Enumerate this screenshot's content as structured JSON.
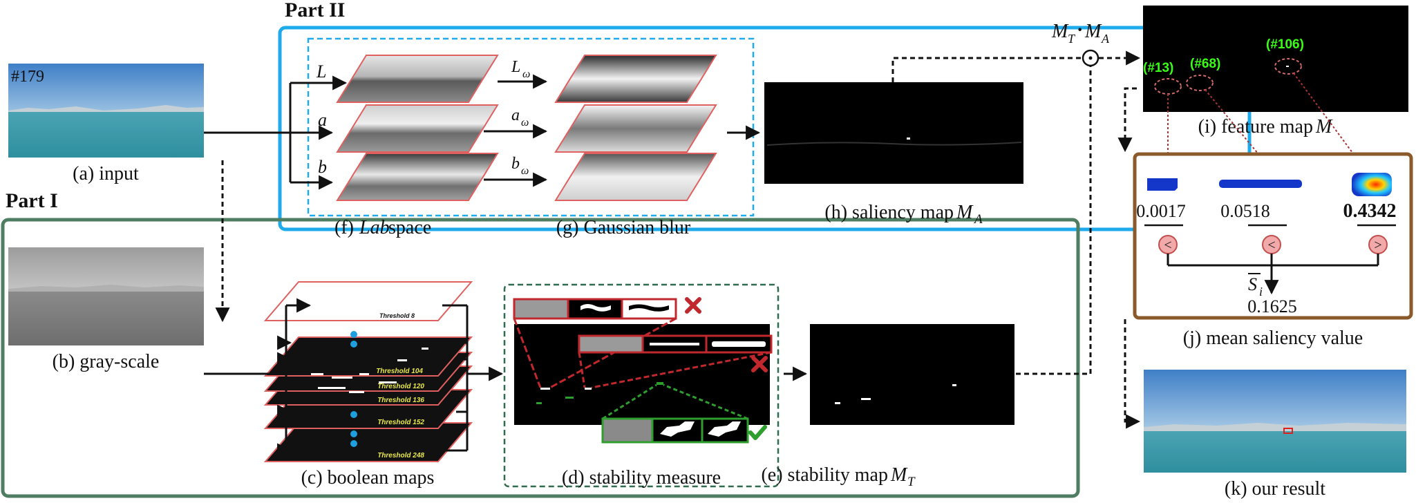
{
  "parts": {
    "part1": "Part I",
    "part2": "Part II"
  },
  "input": {
    "frame_tag": "#179",
    "caption": "(a) input"
  },
  "gray": {
    "caption": "(b) gray-scale"
  },
  "boolean": {
    "caption": "(c) boolean maps",
    "thresholds": [
      "Threshold 8",
      "Threshold 104",
      "Threshold 120",
      "Threshold 136",
      "Threshold 152",
      "Threshold 248"
    ]
  },
  "stability_measure": {
    "caption": "(d) stability measure"
  },
  "stability_map": {
    "caption_prefix": "(e) stability map ",
    "symbol": "M",
    "sub": "T"
  },
  "lab": {
    "channels": [
      "L",
      "a",
      "b"
    ],
    "caption_prefix": "(f) ",
    "caption_italic": "Lab",
    "caption_suffix": " space"
  },
  "gauss": {
    "channels": [
      "L",
      "a",
      "b"
    ],
    "sub": "ω",
    "caption": "(g) Gaussian blur"
  },
  "saliency_map": {
    "caption_prefix": "(h) saliency map ",
    "symbol": "M",
    "sub": "A"
  },
  "product": {
    "m1": "M",
    "s1": "T",
    "dot": "·",
    "m2": "M",
    "s2": "A",
    "odot": "⊙"
  },
  "feature_map": {
    "caption_prefix": "(i) feature map ",
    "symbol": "M",
    "tags": [
      "(#13)",
      "(#68)",
      "(#106)"
    ]
  },
  "mean_saliency": {
    "values": [
      "0.0017",
      "0.0518",
      "0.4342"
    ],
    "compare": [
      "<",
      "<",
      ">"
    ],
    "mean_symbol": "S",
    "mean_sub": "i",
    "mean_value": "0.1625",
    "caption": "(j) mean saliency value"
  },
  "result": {
    "caption": "(k) our result"
  },
  "colors": {
    "part1_border": "#4e7d61",
    "part2_border": "#1eaaeb",
    "mean_border": "#8b5a2b",
    "reject": "#c0282d",
    "accept": "#2e9e2e",
    "dashed_green": "#2f6b4f",
    "dashed_blue": "#1eaaeb",
    "sky": "#6fa6d8",
    "sea": "#3f9fb0",
    "dot_blue": "#1e9fe0",
    "circle_fill": "#f1a9a9",
    "circle_stroke": "#c24e4e"
  }
}
